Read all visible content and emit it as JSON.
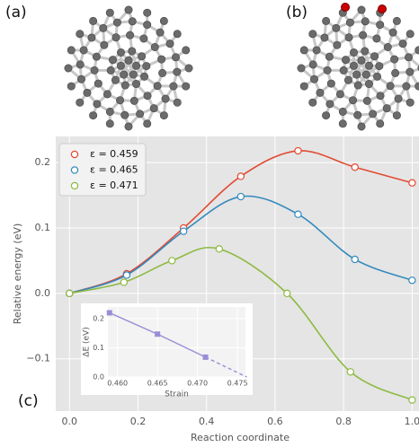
{
  "panel_labels": [
    "(a)",
    "(b)",
    "(c)"
  ],
  "chart_data": {
    "type": "line",
    "xlabel": "Reaction coordinate",
    "ylabel": "Relative energy (eV)",
    "xlim": [
      -0.04,
      1.02
    ],
    "ylim": [
      -0.18,
      0.24
    ],
    "xticks": [
      {
        "value": 0,
        "label": "0.0"
      },
      {
        "value": 0.2,
        "label": "0.2"
      },
      {
        "value": 0.4,
        "label": "0.4"
      },
      {
        "value": 0.6,
        "label": "0.6"
      },
      {
        "value": 0.8,
        "label": "0.8"
      },
      {
        "value": 1,
        "label": "1.0"
      }
    ],
    "yticks": [
      {
        "value": -0.1,
        "label": "−0.1"
      },
      {
        "value": 0,
        "label": "0.0"
      },
      0.1,
      0.2
    ],
    "grid": true,
    "legend": "upper left",
    "series": [
      {
        "name": "ε = 0.459",
        "color": "#e24a33",
        "x": [
          0,
          0.167,
          0.333,
          0.5,
          0.667,
          0.833,
          1.0
        ],
        "values": [
          0,
          0.03,
          0.1,
          0.179,
          0.218,
          0.193,
          0.169
        ]
      },
      {
        "name": "ε = 0.465",
        "color": "#348abd",
        "x": [
          0,
          0.167,
          0.333,
          0.5,
          0.667,
          0.833,
          1.0
        ],
        "values": [
          0,
          0.028,
          0.095,
          0.148,
          0.121,
          0.052,
          0.02
        ]
      },
      {
        "name": "ε = 0.471",
        "color": "#8eba42",
        "x": [
          0,
          0.159,
          0.299,
          0.437,
          0.635,
          0.82,
          1.0
        ],
        "values": [
          0,
          0.017,
          0.05,
          0.068,
          0.0,
          -0.12,
          -0.163
        ]
      }
    ],
    "inset": {
      "type": "line",
      "xlabel": "Strain",
      "ylabel": "ΔE (eV)",
      "color": "#988ed5",
      "xlim": [
        0.4588,
        0.476
      ],
      "ylim": [
        0,
        0.24
      ],
      "xticks": [
        {
          "value": 0.46,
          "label": "0.460"
        },
        {
          "value": 0.465,
          "label": "0.465"
        },
        {
          "value": 0.47,
          "label": "0.470"
        },
        {
          "value": 0.475,
          "label": "0.475"
        }
      ],
      "yticks": [
        {
          "value": 0,
          "label": "0.0"
        },
        0.1,
        0.2
      ],
      "x": [
        0.459,
        0.465,
        0.471
      ],
      "values": [
        0.22,
        0.147,
        0.068
      ]
    }
  }
}
